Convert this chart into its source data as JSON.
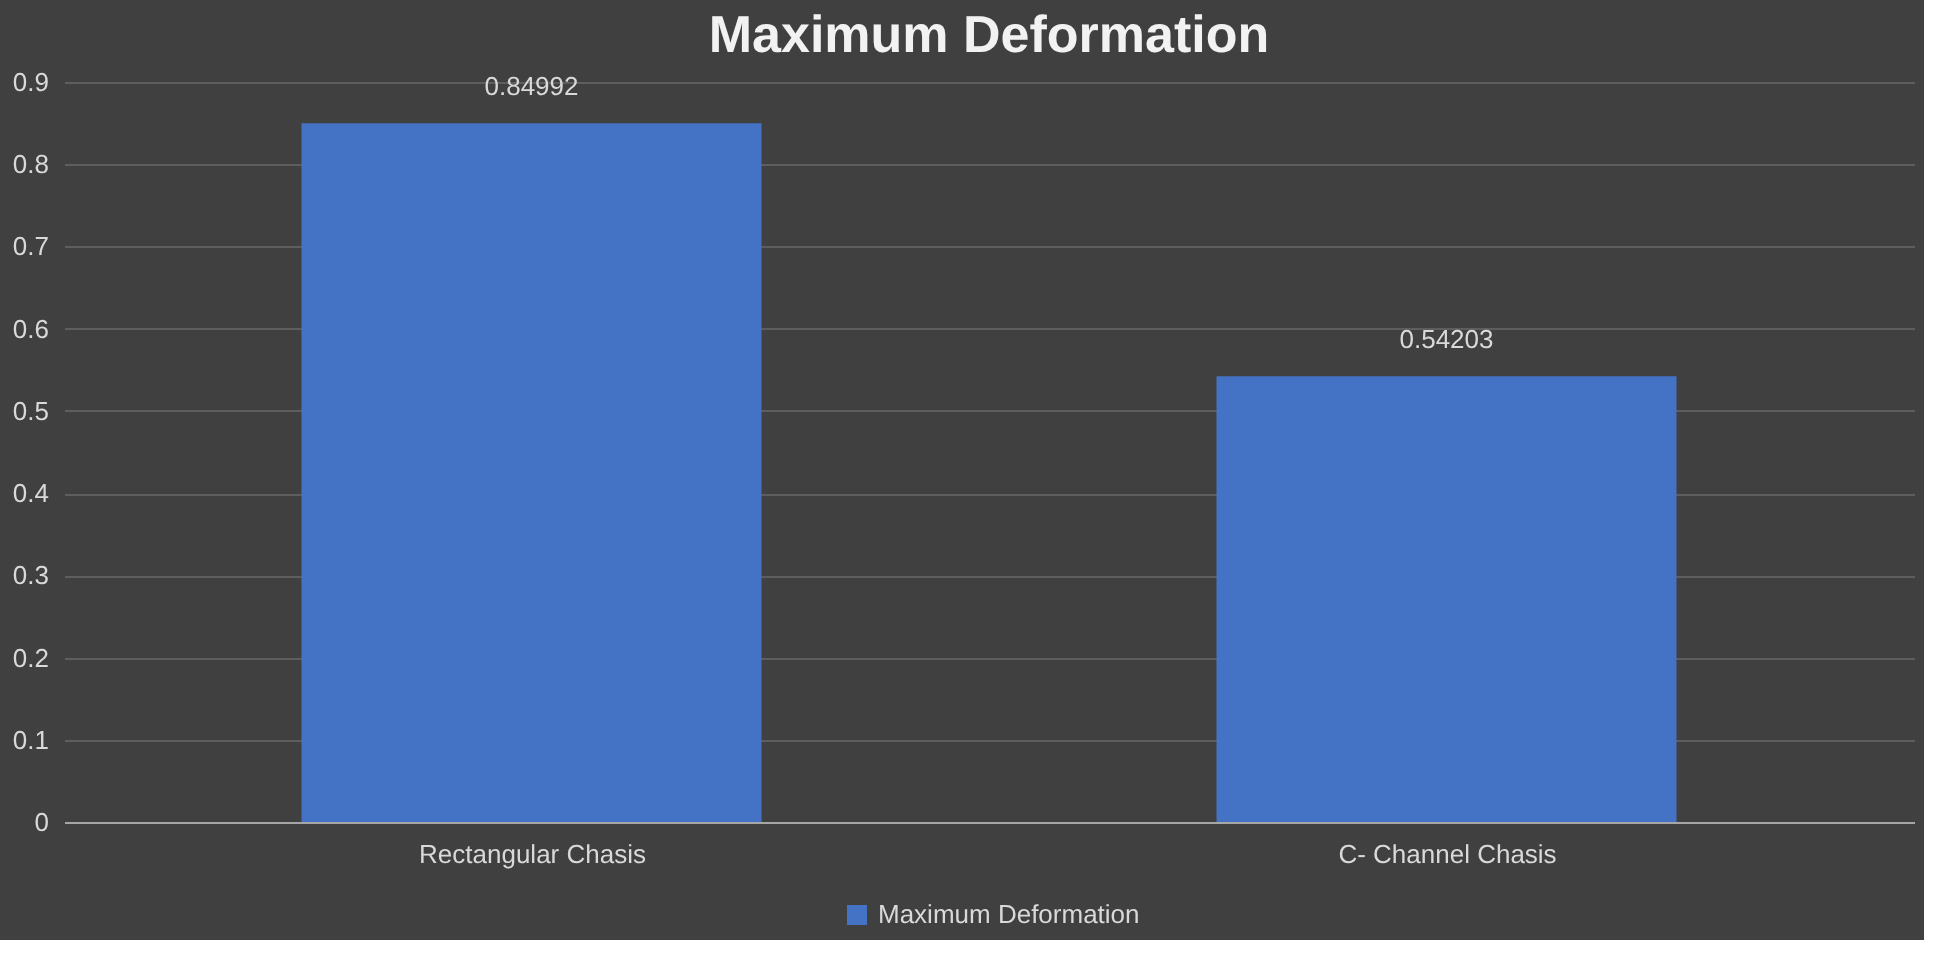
{
  "chart_data": {
    "type": "bar",
    "title": "Maximum Deformation",
    "categories": [
      "Rectangular Chasis",
      "C- Channel Chasis"
    ],
    "series": [
      {
        "name": "Maximum Deformation",
        "color": "#4472c4",
        "values": [
          0.84992,
          0.54203
        ]
      }
    ],
    "ylim": [
      0,
      0.9
    ],
    "yticks": [
      0,
      0.1,
      0.2,
      0.3,
      0.4,
      0.5,
      0.6,
      0.7,
      0.8,
      0.9
    ],
    "grid": "y",
    "legend": "bottom",
    "data_labels": true
  }
}
